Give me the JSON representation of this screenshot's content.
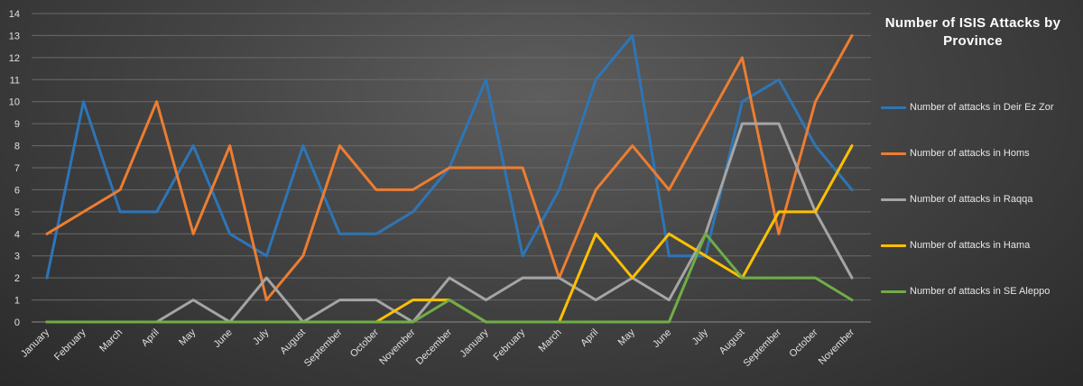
{
  "chart_data": {
    "type": "line",
    "title": "Number of ISIS Attacks by Province",
    "xlabel": "",
    "ylabel": "",
    "ylim": [
      0,
      14
    ],
    "grid": true,
    "legend_position": "right",
    "categories": [
      "January",
      "February",
      "March",
      "April",
      "May",
      "June",
      "July",
      "August",
      "September",
      "October",
      "November",
      "December",
      "January",
      "February",
      "March",
      "April",
      "May",
      "June",
      "July",
      "August",
      "September",
      "October",
      "November"
    ],
    "series": [
      {
        "name": "Number of attacks in Deir Ez Zor",
        "color": "#2e75b6",
        "values": [
          2,
          10,
          5,
          5,
          8,
          4,
          3,
          8,
          4,
          4,
          5,
          7,
          11,
          3,
          6,
          11,
          13,
          3,
          3,
          10,
          11,
          8,
          6
        ]
      },
      {
        "name": "Number of attacks in Homs",
        "color": "#ed7d31",
        "values": [
          4,
          5,
          6,
          10,
          4,
          8,
          1,
          3,
          8,
          6,
          6,
          7,
          7,
          7,
          2,
          6,
          8,
          6,
          9,
          12,
          4,
          10,
          13
        ]
      },
      {
        "name": "Number of attacks in Raqqa",
        "color": "#a5a5a5",
        "values": [
          0,
          0,
          0,
          0,
          1,
          0,
          2,
          0,
          1,
          1,
          0,
          2,
          1,
          2,
          2,
          1,
          2,
          1,
          4,
          9,
          9,
          5,
          2
        ]
      },
      {
        "name": "Number of attacks in Hama",
        "color": "#ffc000",
        "values": [
          0,
          0,
          0,
          0,
          0,
          0,
          0,
          0,
          0,
          0,
          1,
          1,
          0,
          0,
          0,
          4,
          2,
          4,
          3,
          2,
          5,
          5,
          8
        ]
      },
      {
        "name": "Number of attacks in SE Aleppo",
        "color": "#70ad47",
        "values": [
          0,
          0,
          0,
          0,
          0,
          0,
          0,
          0,
          0,
          0,
          0,
          1,
          0,
          0,
          0,
          0,
          0,
          0,
          4,
          2,
          2,
          2,
          1
        ]
      }
    ]
  }
}
